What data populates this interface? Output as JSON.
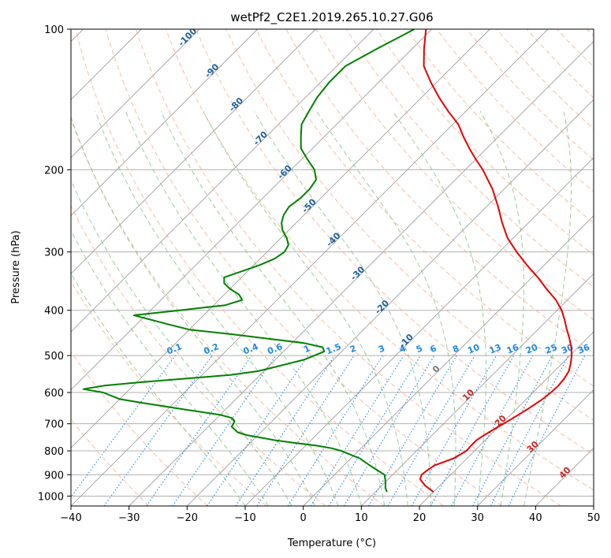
{
  "chart_data": {
    "type": "skewt",
    "title": "wetPf2_C2E1.2019.265.10.27.G06",
    "xlabel": "Temperature (°C)",
    "ylabel": "Pressure (hPa)",
    "xlim": [
      -40,
      50
    ],
    "ylim": [
      1050,
      100
    ],
    "x_ticks": [
      -40,
      -30,
      -20,
      -10,
      0,
      10,
      20,
      30,
      40,
      50
    ],
    "y_ticks": [
      100,
      200,
      300,
      400,
      500,
      600,
      700,
      800,
      900,
      1000
    ],
    "x_tick_labels": [
      "−40",
      "−30",
      "−20",
      "−10",
      "0",
      "10",
      "20",
      "30",
      "40",
      "50"
    ],
    "y_tick_labels": [
      "100",
      "200",
      "300",
      "400",
      "500",
      "600",
      "700",
      "800",
      "900",
      "1000"
    ],
    "grid": true,
    "dry_adiabat_labels": [
      "-100",
      "-90",
      "-80",
      "-70",
      "-60",
      "-50",
      "-40",
      "-30",
      "-20",
      "-10",
      "0",
      "10",
      "20",
      "30",
      "40"
    ],
    "mixing_ratio_labels": [
      "0.1",
      "0.2",
      "0.4",
      "0.6",
      "1",
      "1.5",
      "2",
      "3",
      "4",
      "5",
      "6",
      "8",
      "10",
      "13",
      "16",
      "20",
      "25",
      "30",
      "36"
    ],
    "colors": {
      "temperature": "#e60000",
      "dewpoint": "#008000",
      "dry_adiabat": "#f4a582",
      "moist_adiabat": "#7fbf7f",
      "mixing_ratio": "#1e88e5",
      "isotherm": "#9e9e9e",
      "adiabat_label": "#1f5f99",
      "positive_label": "#c62828"
    },
    "series": [
      {
        "key": "temperature",
        "pressure": [
          980,
          950,
          920,
          900,
          880,
          860,
          850,
          830,
          800,
          780,
          760,
          750,
          720,
          700,
          680,
          650,
          620,
          600,
          580,
          560,
          540,
          520,
          500,
          480,
          460,
          440,
          420,
          400,
          380,
          360,
          340,
          320,
          300,
          280,
          260,
          240,
          220,
          200,
          190,
          180,
          170,
          160,
          150,
          140,
          130,
          120,
          110,
          100
        ],
        "values": [
          20,
          17.5,
          15.5,
          15,
          15.2,
          15.6,
          16.3,
          17.7,
          18.6,
          18.5,
          18.5,
          18.7,
          19.6,
          20.3,
          21,
          22,
          22.8,
          23.1,
          23.2,
          23,
          22.5,
          21.5,
          20.3,
          18.8,
          17,
          15,
          13,
          10.8,
          8,
          4.5,
          1,
          -3,
          -7,
          -11,
          -14.5,
          -18,
          -22,
          -27,
          -30,
          -33,
          -36,
          -39,
          -43,
          -47,
          -51,
          -55,
          -58,
          -61
        ]
      },
      {
        "key": "dewpoint",
        "pressure": [
          980,
          960,
          940,
          920,
          900,
          880,
          860,
          850,
          840,
          830,
          820,
          810,
          800,
          790,
          780,
          770,
          760,
          750,
          740,
          730,
          720,
          710,
          700,
          690,
          680,
          670,
          660,
          650,
          640,
          630,
          620,
          600,
          590,
          580,
          570,
          560,
          550,
          540,
          530,
          520,
          510,
          500,
          490,
          480,
          470,
          460,
          450,
          440,
          430,
          420,
          410,
          400,
          390,
          380,
          370,
          360,
          350,
          340,
          330,
          320,
          310,
          300,
          290,
          280,
          270,
          260,
          250,
          240,
          230,
          220,
          210,
          200,
          190,
          180,
          170,
          160,
          150,
          140,
          130,
          120,
          110,
          100
        ],
        "values": [
          12,
          11,
          10.3,
          9.5,
          8.6,
          6.6,
          4.5,
          3.5,
          2.5,
          1.5,
          0,
          -1.5,
          -3,
          -5,
          -8,
          -12,
          -16,
          -19,
          -22,
          -24,
          -25,
          -26,
          -26.2,
          -26.5,
          -27.5,
          -30,
          -34,
          -38,
          -42,
          -46,
          -50,
          -54,
          -58,
          -55,
          -49,
          -42,
          -35,
          -31,
          -29,
          -27,
          -25,
          -24,
          -23,
          -24,
          -28,
          -35,
          -42,
          -50,
          -54,
          -58,
          -62,
          -55,
          -48,
          -46,
          -47.5,
          -50,
          -52,
          -53,
          -51,
          -49,
          -47.5,
          -47,
          -47.5,
          -49,
          -51,
          -52.5,
          -53.5,
          -54,
          -53.5,
          -53.5,
          -54,
          -56,
          -59,
          -62,
          -64,
          -66,
          -67,
          -68,
          -68.5,
          -68.5,
          -66,
          -63
        ]
      }
    ]
  }
}
